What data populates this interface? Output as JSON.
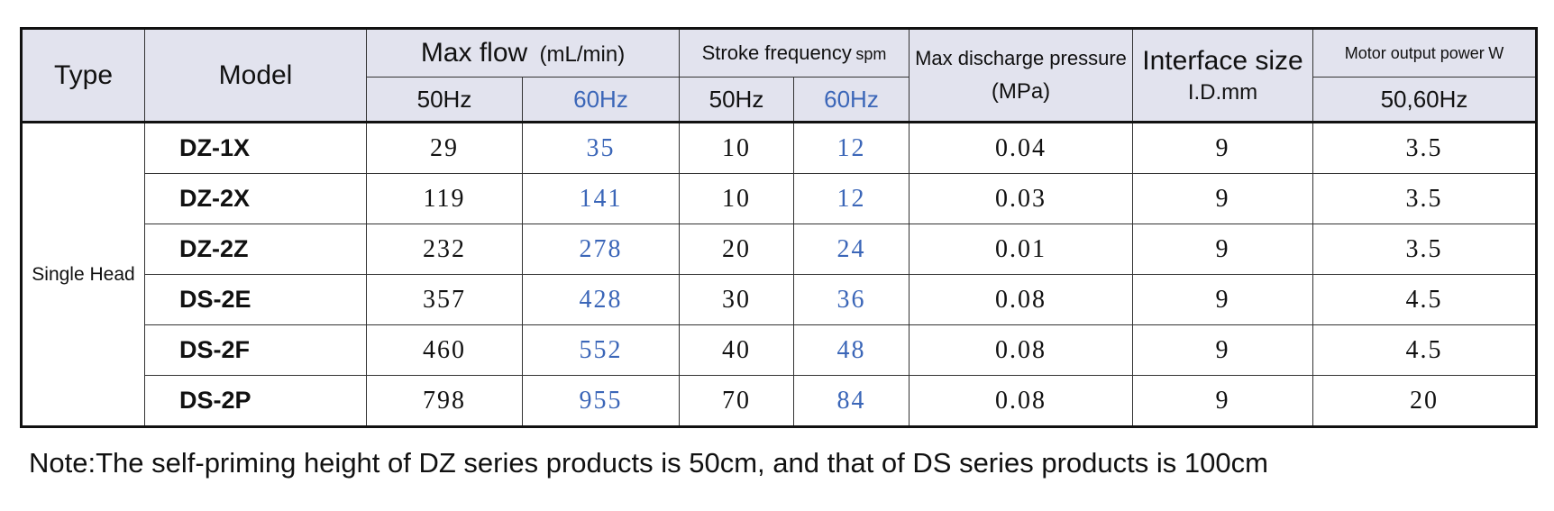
{
  "header": {
    "type": "Type",
    "model": "Model",
    "max_flow": "Max flow",
    "max_flow_unit": "(mL/min)",
    "stroke_frequency": "Stroke frequency",
    "stroke_unit": "spm",
    "max_discharge": "Max discharge pressure",
    "max_discharge_unit": "(MPa)",
    "interface_size": "Interface size",
    "interface_unit": "I.D.mm",
    "motor_power": "Motor output power",
    "motor_unit": "W",
    "flow_50": "50Hz",
    "flow_60": "60Hz",
    "stroke_50": "50Hz",
    "stroke_60": "60Hz",
    "motor_hz": "50,60Hz"
  },
  "type_label": "Single Head",
  "rows": [
    {
      "model": "DZ-1X",
      "flow50": "29",
      "flow60": "35",
      "stroke50": "10",
      "stroke60": "12",
      "pressure": "0.04",
      "interface": "9",
      "power": "3.5"
    },
    {
      "model": "DZ-2X",
      "flow50": "119",
      "flow60": "141",
      "stroke50": "10",
      "stroke60": "12",
      "pressure": "0.03",
      "interface": "9",
      "power": "3.5"
    },
    {
      "model": "DZ-2Z",
      "flow50": "232",
      "flow60": "278",
      "stroke50": "20",
      "stroke60": "24",
      "pressure": "0.01",
      "interface": "9",
      "power": "3.5"
    },
    {
      "model": "DS-2E",
      "flow50": "357",
      "flow60": "428",
      "stroke50": "30",
      "stroke60": "36",
      "pressure": "0.08",
      "interface": "9",
      "power": "4.5"
    },
    {
      "model": "DS-2F",
      "flow50": "460",
      "flow60": "552",
      "stroke50": "40",
      "stroke60": "48",
      "pressure": "0.08",
      "interface": "9",
      "power": "4.5"
    },
    {
      "model": "DS-2P",
      "flow50": "798",
      "flow60": "955",
      "stroke50": "70",
      "stroke60": "84",
      "pressure": "0.08",
      "interface": "9",
      "power": "20"
    }
  ],
  "note": "Note:The self-priming height of DZ series products is 50cm, and that of  DS series products is 100cm",
  "colors": {
    "header_bg": "#e2e3ee",
    "accent_blue": "#3b66b8"
  }
}
